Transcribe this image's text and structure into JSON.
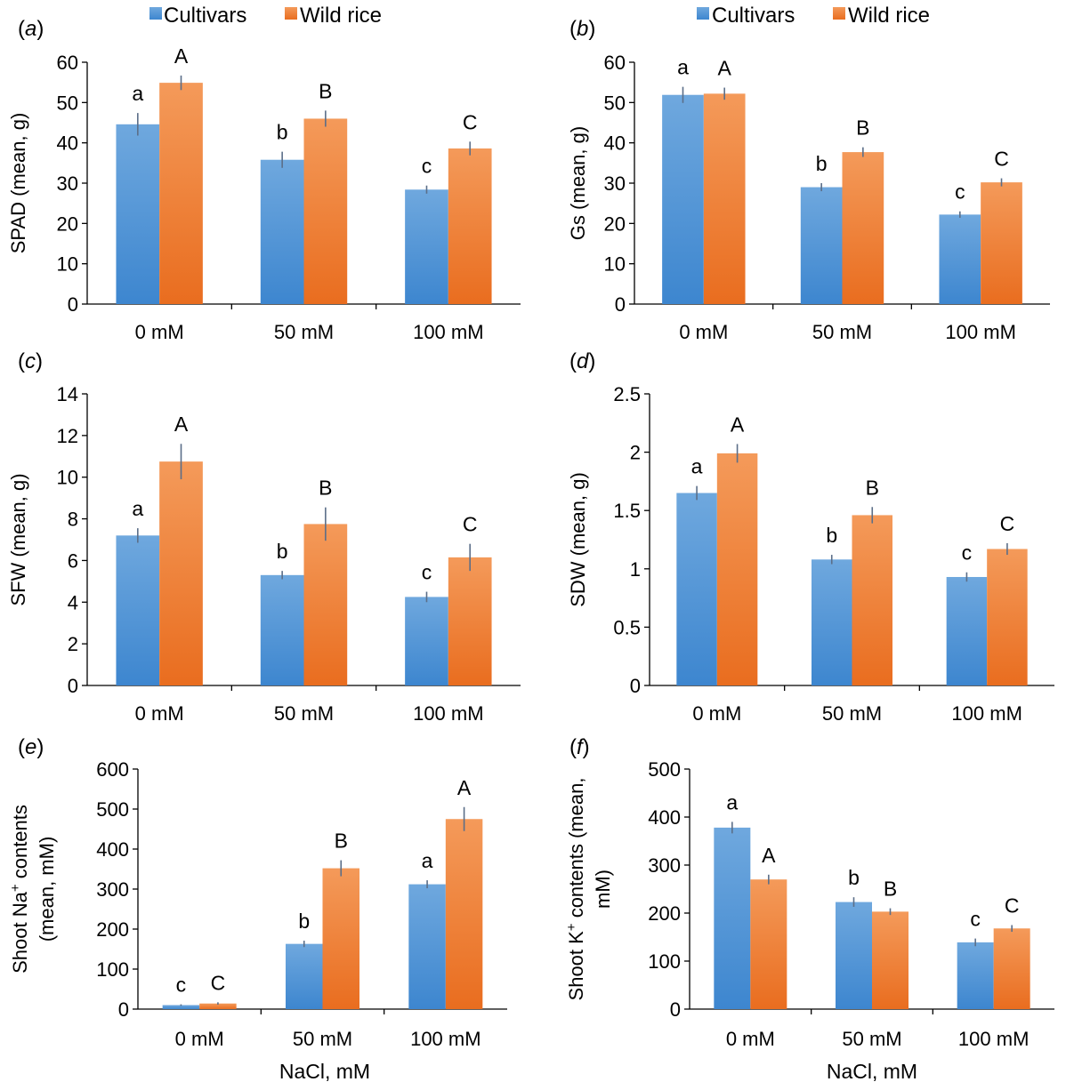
{
  "legend": {
    "cultivars": "Cultivars",
    "wild_rice": "Wild rice"
  },
  "colors": {
    "cultivars_top": "#6fa8de",
    "cultivars_bottom": "#3d86cf",
    "wild_top": "#f49a5a",
    "wild_bottom": "#e96d1f",
    "error_bar": "#5b6e88",
    "axis": "#000000"
  },
  "chart_data": [
    {
      "panel": "(a)",
      "type": "bar",
      "categories": [
        "0 mM",
        "50 mM",
        "100 mM"
      ],
      "ylabel": "SPAD (mean, g)",
      "xlabel": "",
      "ylim": [
        0,
        60
      ],
      "yticks": [
        "0",
        "10",
        "20",
        "30",
        "40",
        "50",
        "60"
      ],
      "series": [
        {
          "name": "Cultivars",
          "values": [
            44.6,
            35.8,
            28.4
          ],
          "errors": [
            2.8,
            2.0,
            1.0
          ],
          "letters": [
            "a",
            "b",
            "c"
          ]
        },
        {
          "name": "Wild rice",
          "values": [
            54.9,
            46.0,
            38.6
          ],
          "errors": [
            1.8,
            2.0,
            1.7
          ],
          "letters": [
            "A",
            "B",
            "C"
          ]
        }
      ]
    },
    {
      "panel": "(b)",
      "type": "bar",
      "categories": [
        "0 mM",
        "50 mM",
        "100 mM"
      ],
      "ylabel": "Gs (mean, g)",
      "xlabel": "",
      "ylim": [
        0,
        60
      ],
      "yticks": [
        "0",
        "10",
        "20",
        "30",
        "40",
        "50",
        "60"
      ],
      "series": [
        {
          "name": "Cultivars",
          "values": [
            51.9,
            29.0,
            22.2
          ],
          "errors": [
            2.0,
            1.0,
            0.8
          ],
          "letters": [
            "a",
            "b",
            "c"
          ]
        },
        {
          "name": "Wild rice",
          "values": [
            52.2,
            37.7,
            30.2
          ],
          "errors": [
            1.5,
            1.2,
            1.0
          ],
          "letters": [
            "A",
            "B",
            "C"
          ]
        }
      ]
    },
    {
      "panel": "(c)",
      "type": "bar",
      "categories": [
        "0 mM",
        "50 mM",
        "100 mM"
      ],
      "ylabel": "SFW (mean, g)",
      "xlabel": "",
      "ylim": [
        0,
        14
      ],
      "yticks": [
        "0",
        "2",
        "4",
        "6",
        "8",
        "10",
        "12",
        "14"
      ],
      "series": [
        {
          "name": "Cultivars",
          "values": [
            7.2,
            5.3,
            4.25
          ],
          "errors": [
            0.35,
            0.2,
            0.25
          ],
          "letters": [
            "a",
            "b",
            "c"
          ]
        },
        {
          "name": "Wild rice",
          "values": [
            10.75,
            7.75,
            6.15
          ],
          "errors": [
            0.85,
            0.8,
            0.65
          ],
          "letters": [
            "A",
            "B",
            "C"
          ]
        }
      ]
    },
    {
      "panel": "(d)",
      "type": "bar",
      "categories": [
        "0 mM",
        "50 mM",
        "100 mM"
      ],
      "ylabel": "SDW (mean, g)",
      "xlabel": "",
      "ylim": [
        0,
        2.5
      ],
      "yticks": [
        "0",
        "0.5",
        "1",
        "1.5",
        "2",
        "2.5"
      ],
      "series": [
        {
          "name": "Cultivars",
          "values": [
            1.65,
            1.08,
            0.93
          ],
          "errors": [
            0.06,
            0.04,
            0.04
          ],
          "letters": [
            "a",
            "b",
            "c"
          ]
        },
        {
          "name": "Wild rice",
          "values": [
            1.99,
            1.46,
            1.17
          ],
          "errors": [
            0.08,
            0.07,
            0.05
          ],
          "letters": [
            "A",
            "B",
            "C"
          ]
        }
      ]
    },
    {
      "panel": "(e)",
      "type": "bar",
      "categories": [
        "0 mM",
        "50 mM",
        "100 mM"
      ],
      "ylabel_line1": "Shoot Na",
      "ylabel_sup": "+",
      "ylabel_line1_tail": " contents",
      "ylabel_line2": "(mean, mM)",
      "xlabel": "NaCl, mM",
      "ylim": [
        0,
        600
      ],
      "yticks": [
        "0",
        "100",
        "200",
        "300",
        "400",
        "500",
        "600"
      ],
      "series": [
        {
          "name": "Cultivars",
          "values": [
            10,
            163,
            312
          ],
          "errors": [
            2,
            8,
            10
          ],
          "letters": [
            "c",
            "b",
            "a"
          ]
        },
        {
          "name": "Wild rice",
          "values": [
            14,
            352,
            475
          ],
          "errors": [
            3,
            20,
            30
          ],
          "letters": [
            "C",
            "B",
            "A"
          ]
        }
      ]
    },
    {
      "panel": "(f)",
      "type": "bar",
      "categories": [
        "0 mM",
        "50 mM",
        "100 mM"
      ],
      "ylabel_line1": "Shoot K",
      "ylabel_sup": "+",
      "ylabel_line1_tail": " contents (mean,",
      "ylabel_line2": "mM)",
      "xlabel": "NaCl, mM",
      "ylim": [
        0,
        500
      ],
      "yticks": [
        "0",
        "100",
        "200",
        "300",
        "400",
        "500"
      ],
      "series": [
        {
          "name": "Cultivars",
          "values": [
            378,
            223,
            139
          ],
          "errors": [
            12,
            10,
            8
          ],
          "letters": [
            "a",
            "b",
            "c"
          ]
        },
        {
          "name": "Wild rice",
          "values": [
            270,
            203,
            168
          ],
          "errors": [
            10,
            7,
            7
          ],
          "letters": [
            "A",
            "B",
            "C"
          ]
        }
      ]
    }
  ]
}
